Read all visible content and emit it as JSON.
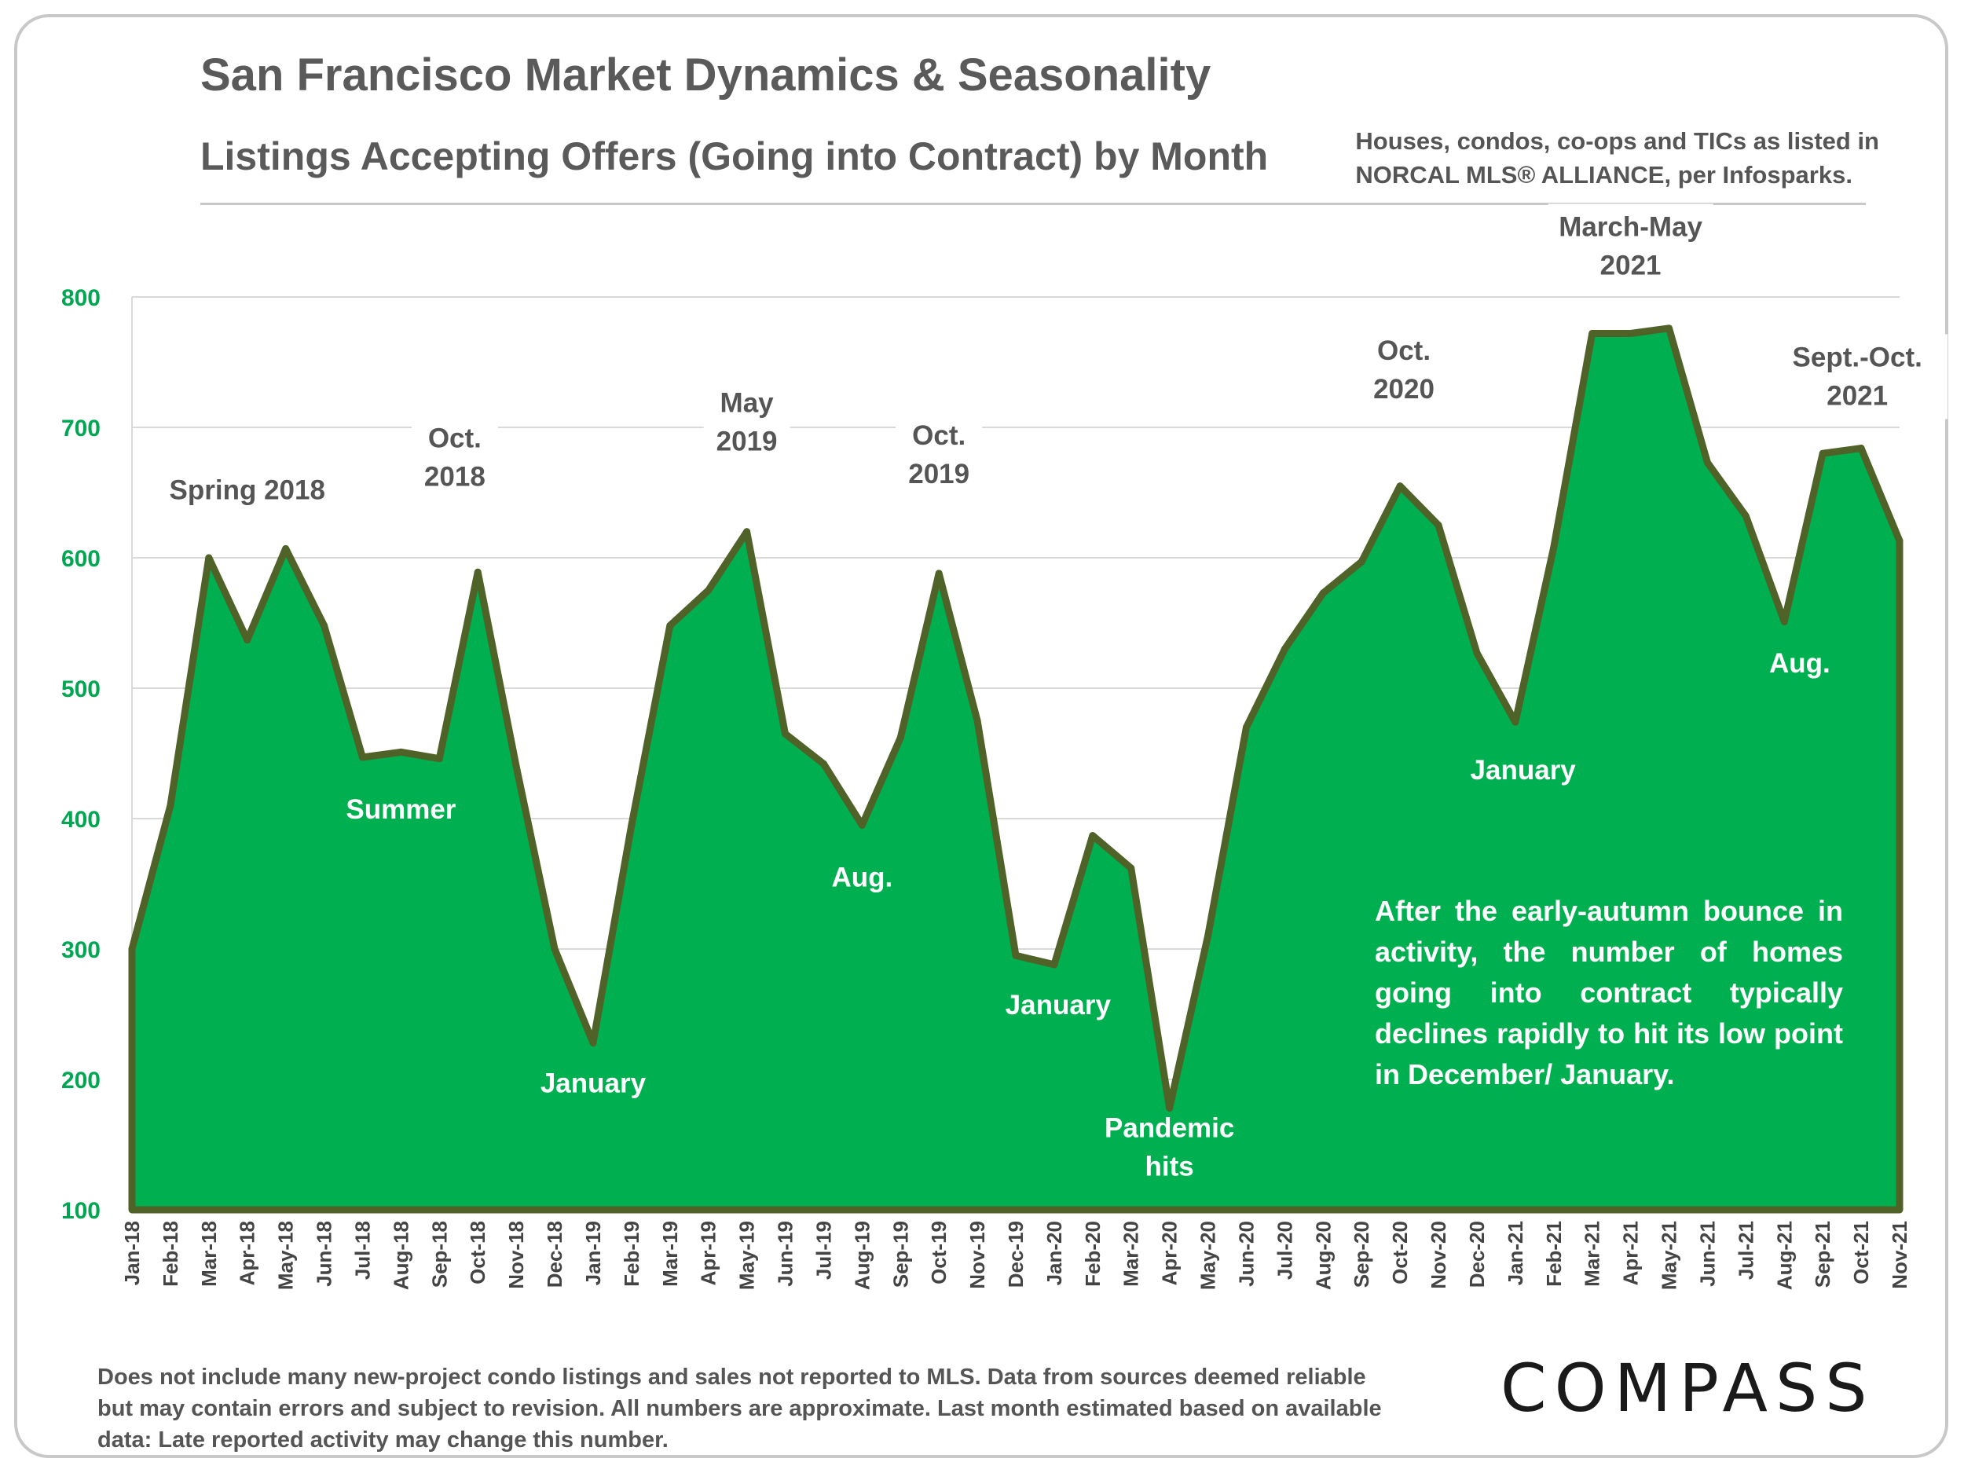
{
  "header": {
    "title": "San Francisco Market Dynamics & Seasonality",
    "subtitle": "Listings Accepting Offers (Going into Contract) by Month",
    "source_line1": "Houses, condos, co-ops and TICs as listed in",
    "source_line2": "NORCAL MLS® ALLIANCE, per Infosparks."
  },
  "footnote": {
    "line1": "Does not include many new-project condo listings and sales not reported to MLS. Data from sources deemed reliable",
    "line2": "but may contain errors and subject to revision.  All numbers are approximate. Last month estimated based on available",
    "line3": "data: Late reported activity may change this number."
  },
  "logo": {
    "text": "COMPASS"
  },
  "note": {
    "text": "After the early-autumn bounce in activity, the number of homes going into contract typically declines rapidly to hit its low point in December/ January."
  },
  "colors": {
    "fill": "#00b050",
    "line": "#4f6228",
    "axis_text": "#00a651",
    "grid": "#d9d9d9"
  },
  "chart_data": {
    "type": "area",
    "title": "Listings Accepting Offers (Going into Contract) by Month",
    "xlabel": "",
    "ylabel": "",
    "ylim": [
      100,
      800
    ],
    "yticks": [
      100,
      200,
      300,
      400,
      500,
      600,
      700,
      800
    ],
    "grid": true,
    "categories": [
      "Jan-18",
      "Feb-18",
      "Mar-18",
      "Apr-18",
      "May-18",
      "Jun-18",
      "Jul-18",
      "Aug-18",
      "Sep-18",
      "Oct-18",
      "Nov-18",
      "Dec-18",
      "Jan-19",
      "Feb-19",
      "Mar-19",
      "Apr-19",
      "May-19",
      "Jun-19",
      "Jul-19",
      "Aug-19",
      "Sep-19",
      "Oct-19",
      "Nov-19",
      "Dec-19",
      "Jan-20",
      "Feb-20",
      "Mar-20",
      "Apr-20",
      "May-20",
      "Jun-20",
      "Jul-20",
      "Aug-20",
      "Sep-20",
      "Oct-20",
      "Nov-20",
      "Dec-20",
      "Jan-21",
      "Feb-21",
      "Mar-21",
      "Apr-21",
      "May-21",
      "Jun-21",
      "Jul-21",
      "Aug-21",
      "Sep-21",
      "Oct-21",
      "Nov-21"
    ],
    "values": [
      300,
      410,
      600,
      537,
      607,
      548,
      447,
      451,
      446,
      589,
      440,
      300,
      228,
      395,
      548,
      575,
      620,
      465,
      442,
      395,
      462,
      588,
      475,
      295,
      288,
      387,
      362,
      178,
      310,
      470,
      530,
      573,
      597,
      655,
      625,
      527,
      474,
      608,
      772,
      772,
      776,
      673,
      632,
      551,
      680,
      684,
      613
    ],
    "annotations": [
      {
        "lines": [
          "Spring 2018"
        ],
        "index": 3,
        "value": 645,
        "color": "dark"
      },
      {
        "lines": [
          "Oct.",
          "2018"
        ],
        "index": 8.4,
        "value": 670,
        "color": "dark"
      },
      {
        "lines": [
          "Summer"
        ],
        "index": 7,
        "value": 400,
        "color": "white"
      },
      {
        "lines": [
          "January"
        ],
        "index": 12,
        "value": 190,
        "color": "white"
      },
      {
        "lines": [
          "May",
          "2019"
        ],
        "index": 16,
        "value": 697,
        "color": "dark"
      },
      {
        "lines": [
          "Oct.",
          "2019"
        ],
        "index": 21,
        "value": 672,
        "color": "dark"
      },
      {
        "lines": [
          "Aug."
        ],
        "index": 19,
        "value": 348,
        "color": "white"
      },
      {
        "lines": [
          "January"
        ],
        "index": 24.1,
        "value": 250,
        "color": "white"
      },
      {
        "lines": [
          "Pandemic",
          "hits"
        ],
        "index": 27,
        "value": 141,
        "color": "white"
      },
      {
        "lines": [
          "Oct.",
          "2020"
        ],
        "index": 33.1,
        "value": 737,
        "color": "dark"
      },
      {
        "lines": [
          "January"
        ],
        "index": 36.2,
        "value": 430,
        "color": "white"
      },
      {
        "lines": [
          "March-May",
          "2021"
        ],
        "index": 39,
        "value": 832,
        "color": "dark"
      },
      {
        "lines": [
          "Aug."
        ],
        "index": 43.4,
        "value": 512,
        "color": "white"
      },
      {
        "lines": [
          "Sept.-Oct.",
          "2021"
        ],
        "index": 44.9,
        "value": 732,
        "color": "dark"
      }
    ]
  }
}
